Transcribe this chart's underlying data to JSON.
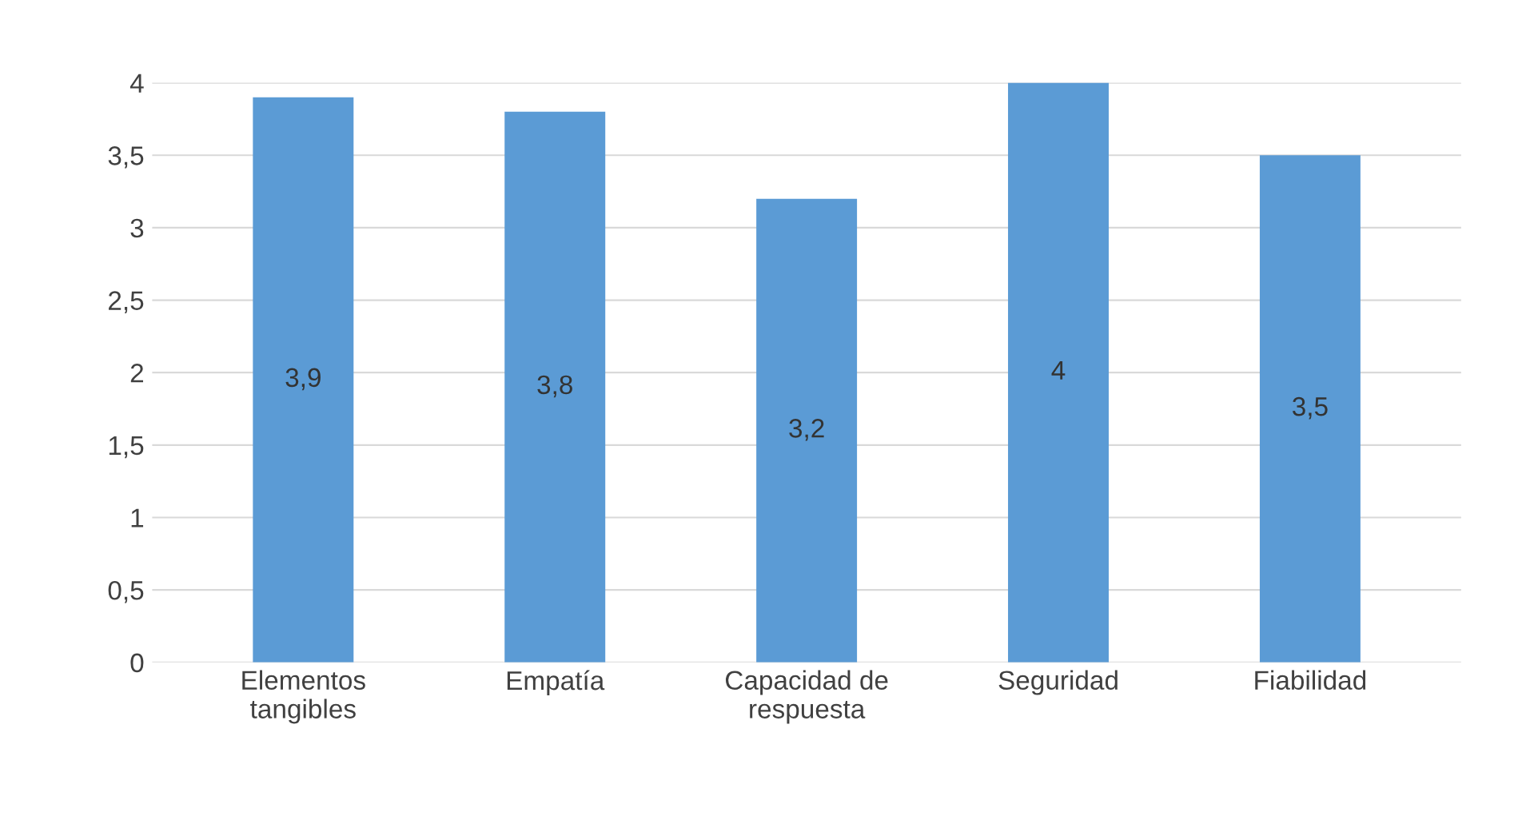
{
  "chart_data": {
    "type": "bar",
    "categories": [
      "Elementos\ntangibles",
      "Empatía",
      "Capacidad de\nrespuesta",
      "Seguridad",
      "Fiabilidad"
    ],
    "values": [
      3.9,
      3.8,
      3.2,
      4,
      3.5
    ],
    "value_labels": [
      "3,9",
      "3,8",
      "3,2",
      "4",
      "3,5"
    ],
    "color": "#5b9bd5",
    "ylim": [
      0,
      4
    ],
    "yticks": [
      0,
      {
        "value": 0.5,
        "label": "0,5"
      },
      1,
      {
        "value": 1.5,
        "label": "1,5"
      },
      2,
      {
        "value": 2.5,
        "label": "2,5"
      },
      3,
      {
        "value": 3.5,
        "label": "3,5"
      },
      4
    ],
    "grid": "y"
  }
}
